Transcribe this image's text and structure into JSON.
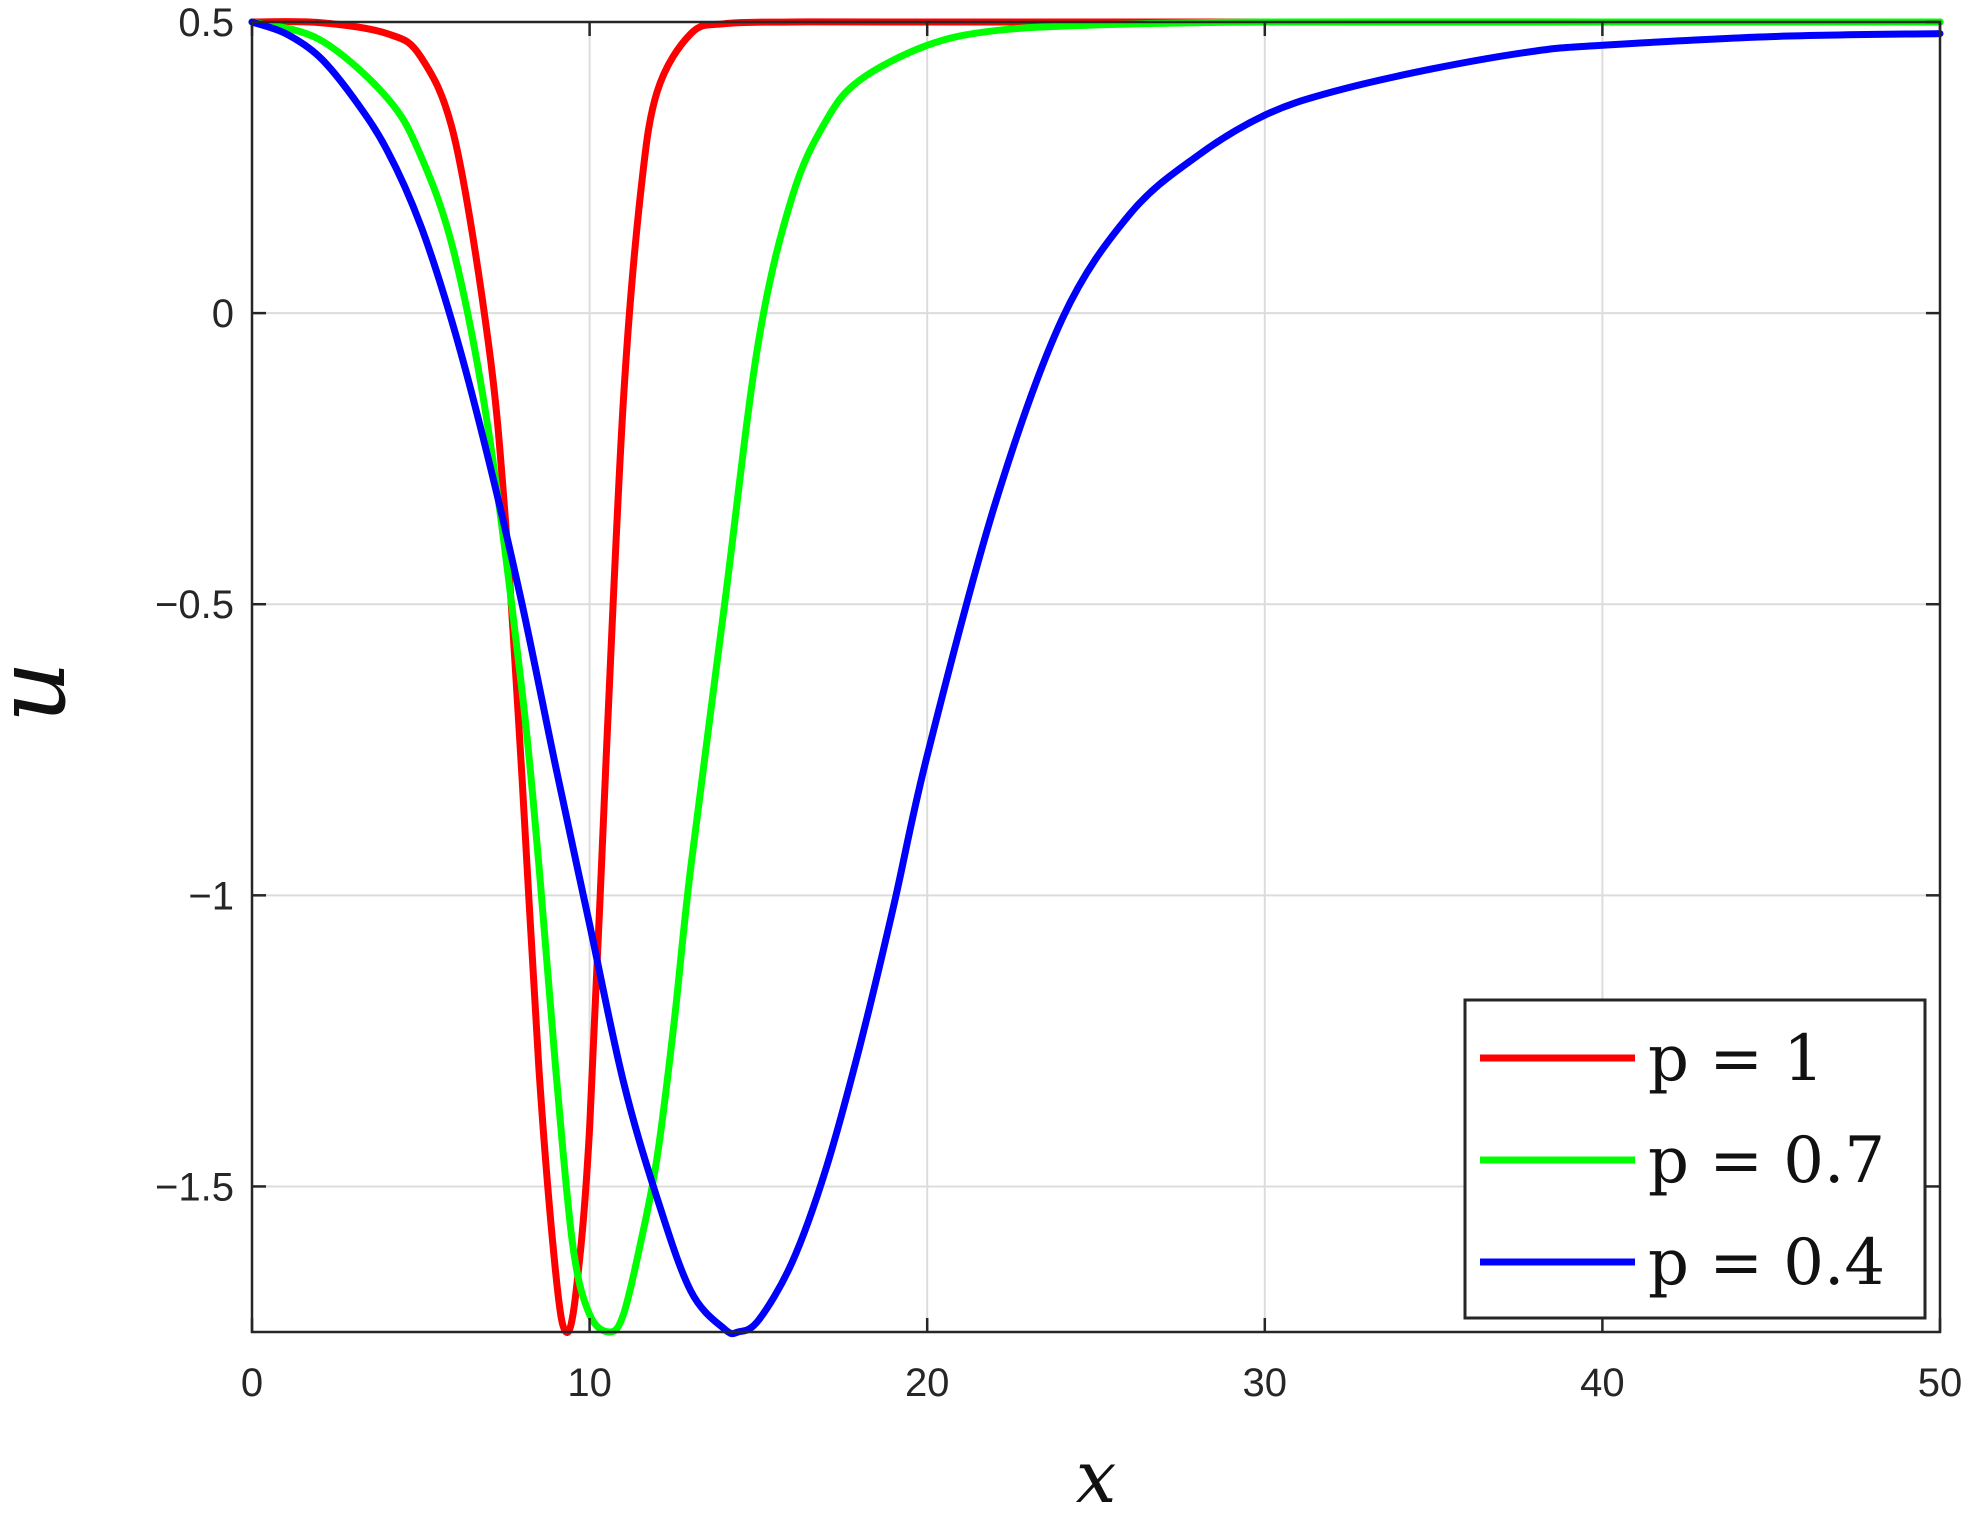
{
  "chart_data": {
    "type": "line",
    "title": "",
    "xlabel": "x",
    "ylabel": "u",
    "xlim": [
      0,
      50
    ],
    "ylim": [
      -1.75,
      0.5
    ],
    "x_ticks": [
      0,
      10,
      20,
      30,
      40,
      50
    ],
    "x_tick_labels": [
      "0",
      "10",
      "20",
      "30",
      "40",
      "50"
    ],
    "y_ticks": [
      0.5,
      0,
      -0.5,
      -1,
      -1.5
    ],
    "y_tick_labels": [
      "0.5",
      "0",
      "−0.5",
      "−1",
      "−1.5"
    ],
    "grid": true,
    "legend_position": "bottom-right",
    "series": [
      {
        "name": "p = 1",
        "color": "#ff0000",
        "x": [
          0,
          2,
          4,
          5,
          6,
          7,
          7.5,
          8,
          8.5,
          9,
          9.3,
          9.6,
          10,
          10.5,
          11,
          11.5,
          12,
          13,
          14,
          16,
          20,
          30,
          40,
          50
        ],
        "y": [
          0.5,
          0.499,
          0.48,
          0.44,
          0.3,
          -0.05,
          -0.35,
          -0.8,
          -1.3,
          -1.65,
          -1.75,
          -1.68,
          -1.4,
          -0.75,
          -0.15,
          0.2,
          0.38,
          0.48,
          0.497,
          0.5,
          0.5,
          0.5,
          0.5,
          0.5
        ]
      },
      {
        "name": "p = 0.7",
        "color": "#00ff00",
        "x": [
          0,
          2,
          4,
          5,
          6,
          7,
          8,
          8.5,
          9,
          9.5,
          10,
          10.6,
          11,
          11.5,
          12,
          12.5,
          13,
          14,
          15,
          16,
          17,
          18,
          20,
          22,
          25,
          30,
          40,
          50
        ],
        "y": [
          0.5,
          0.47,
          0.37,
          0.27,
          0.1,
          -0.2,
          -0.65,
          -0.95,
          -1.3,
          -1.6,
          -1.72,
          -1.75,
          -1.72,
          -1.6,
          -1.45,
          -1.22,
          -0.95,
          -0.5,
          -0.05,
          0.2,
          0.33,
          0.4,
          0.46,
          0.485,
          0.495,
          0.5,
          0.5,
          0.5
        ]
      },
      {
        "name": "p = 0.4",
        "color": "#0000ff",
        "x": [
          0,
          1,
          2,
          3,
          4,
          5,
          6,
          7,
          8,
          9,
          10,
          11,
          12,
          13,
          14,
          14.4,
          15,
          16,
          17,
          18,
          19,
          20,
          22,
          24,
          26,
          28,
          30,
          32,
          35,
          38,
          40,
          45,
          50
        ],
        "y": [
          0.5,
          0.48,
          0.44,
          0.37,
          0.28,
          0.15,
          -0.03,
          -0.25,
          -0.5,
          -0.78,
          -1.05,
          -1.32,
          -1.52,
          -1.68,
          -1.745,
          -1.75,
          -1.73,
          -1.63,
          -1.47,
          -1.26,
          -1.02,
          -0.76,
          -0.33,
          -0.01,
          0.17,
          0.27,
          0.34,
          0.38,
          0.42,
          0.45,
          0.46,
          0.475,
          0.48
        ]
      }
    ]
  }
}
